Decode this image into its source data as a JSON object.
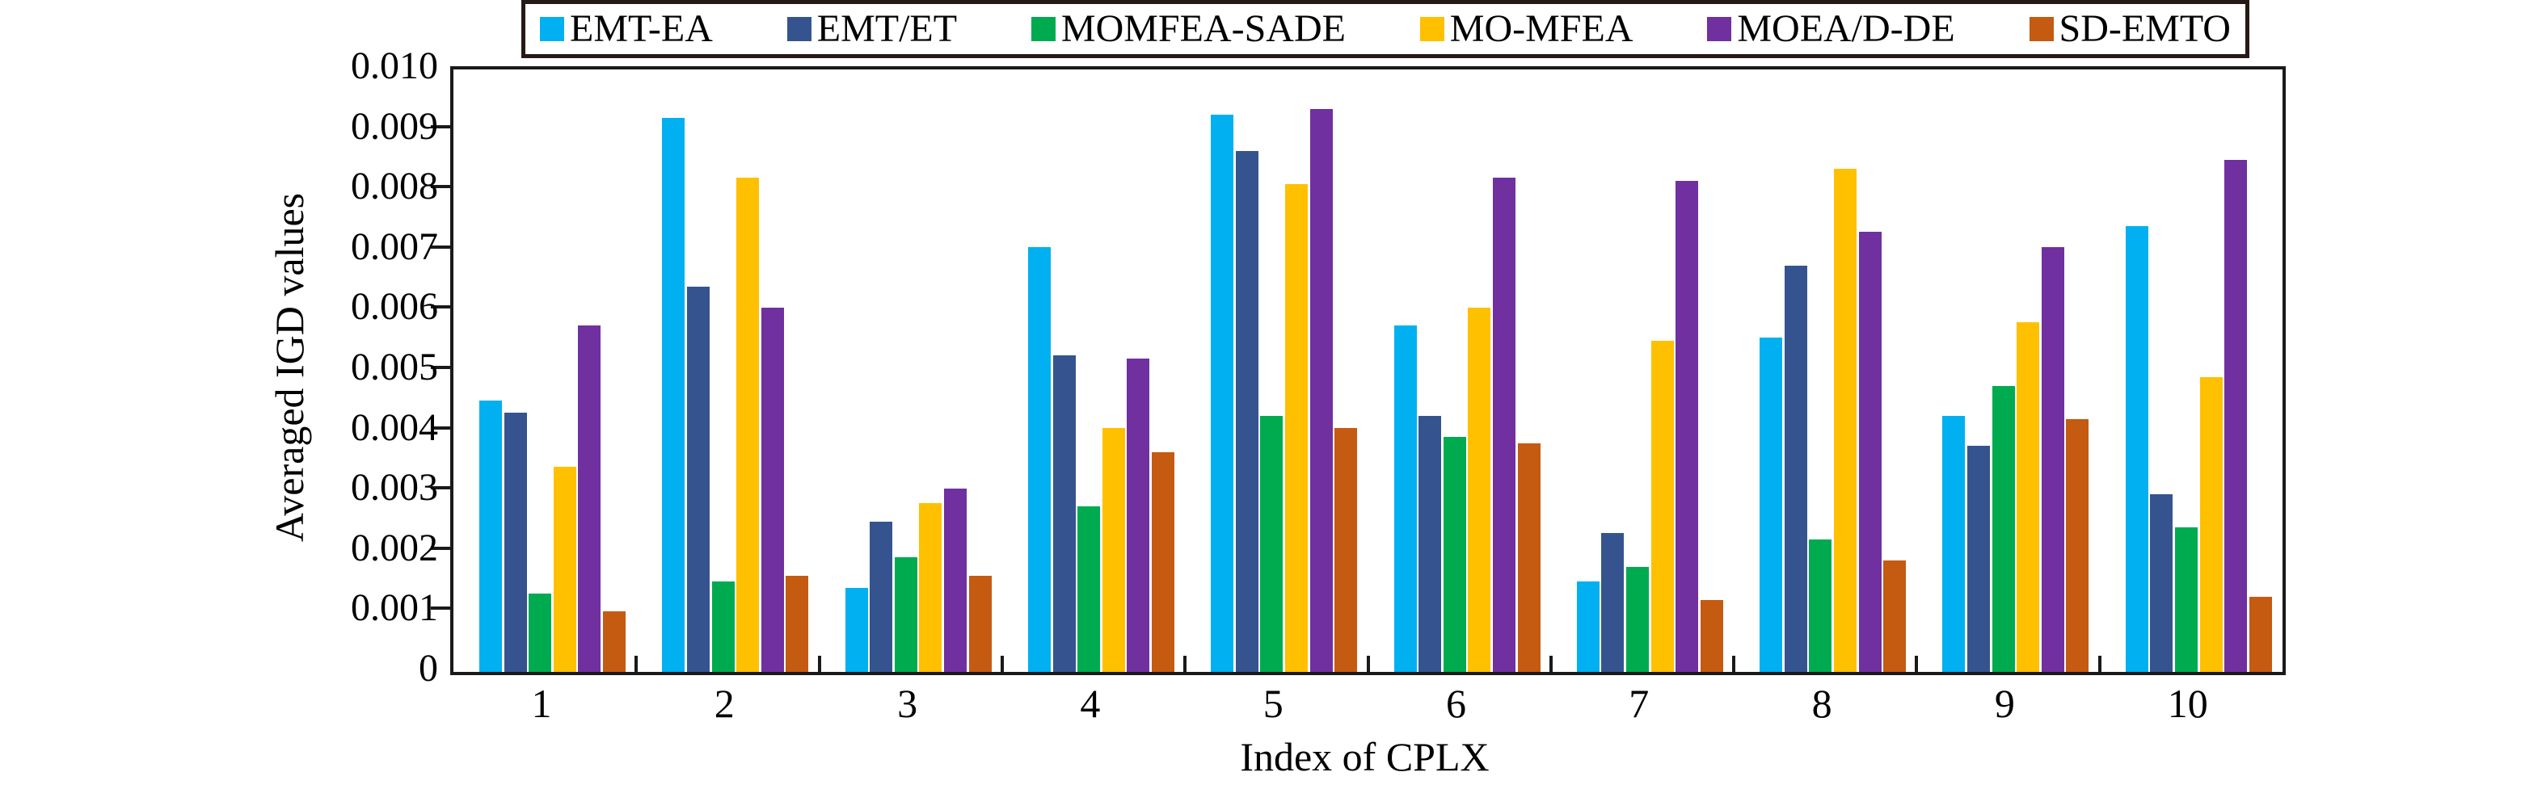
{
  "legend": {
    "items": [
      {
        "label": "EMT-EA",
        "color": "#00B0F0"
      },
      {
        "label": "EMT/ET",
        "color": "#35548F"
      },
      {
        "label": "MOMFEA-SADE",
        "color": "#00AB50"
      },
      {
        "label": "MO-MFEA",
        "color": "#FFC000"
      },
      {
        "label": "MOEA/D-DE",
        "color": "#7030A0"
      },
      {
        "label": "SD-EMTO",
        "color": "#C55A11"
      }
    ]
  },
  "chart_data": {
    "type": "bar",
    "title": "",
    "xlabel": "Index of CPLX",
    "ylabel": "Averaged IGD values",
    "categories": [
      "1",
      "2",
      "3",
      "4",
      "5",
      "6",
      "7",
      "8",
      "9",
      "10"
    ],
    "series": [
      {
        "name": "EMT-EA",
        "color": "#00B0F0",
        "values": [
          0.0045,
          0.0092,
          0.0014,
          0.00705,
          0.00925,
          0.00575,
          0.0015,
          0.00555,
          0.00425,
          0.0074
        ]
      },
      {
        "name": "EMT/ET",
        "color": "#35548F",
        "values": [
          0.0043,
          0.0064,
          0.0025,
          0.00525,
          0.00865,
          0.00425,
          0.0023,
          0.00675,
          0.00375,
          0.00295
        ]
      },
      {
        "name": "MOMFEA-SADE",
        "color": "#00AB50",
        "values": [
          0.0013,
          0.0015,
          0.0019,
          0.00275,
          0.00425,
          0.0039,
          0.00175,
          0.0022,
          0.00475,
          0.0024
        ]
      },
      {
        "name": "MO-MFEA",
        "color": "#FFC000",
        "values": [
          0.0034,
          0.0082,
          0.0028,
          0.00405,
          0.0081,
          0.00605,
          0.0055,
          0.00835,
          0.0058,
          0.0049
        ]
      },
      {
        "name": "MOEA/D-DE",
        "color": "#7030A0",
        "values": [
          0.00575,
          0.00605,
          0.00305,
          0.0052,
          0.00935,
          0.0082,
          0.00815,
          0.0073,
          0.00705,
          0.0085
        ]
      },
      {
        "name": "SD-EMTO",
        "color": "#C55A11",
        "values": [
          0.001,
          0.0016,
          0.0016,
          0.00365,
          0.00405,
          0.0038,
          0.0012,
          0.00185,
          0.0042,
          0.00125
        ]
      }
    ],
    "ylim": [
      0,
      0.01
    ],
    "y_tick_step": 0.001,
    "y_tick_labels": [
      "0",
      "0.001",
      "0.002",
      "0.003",
      "0.004",
      "0.005",
      "0.006",
      "0.007",
      "0.008",
      "0.009",
      "0.010"
    ],
    "grid": "off",
    "legend_position": "top-center"
  }
}
